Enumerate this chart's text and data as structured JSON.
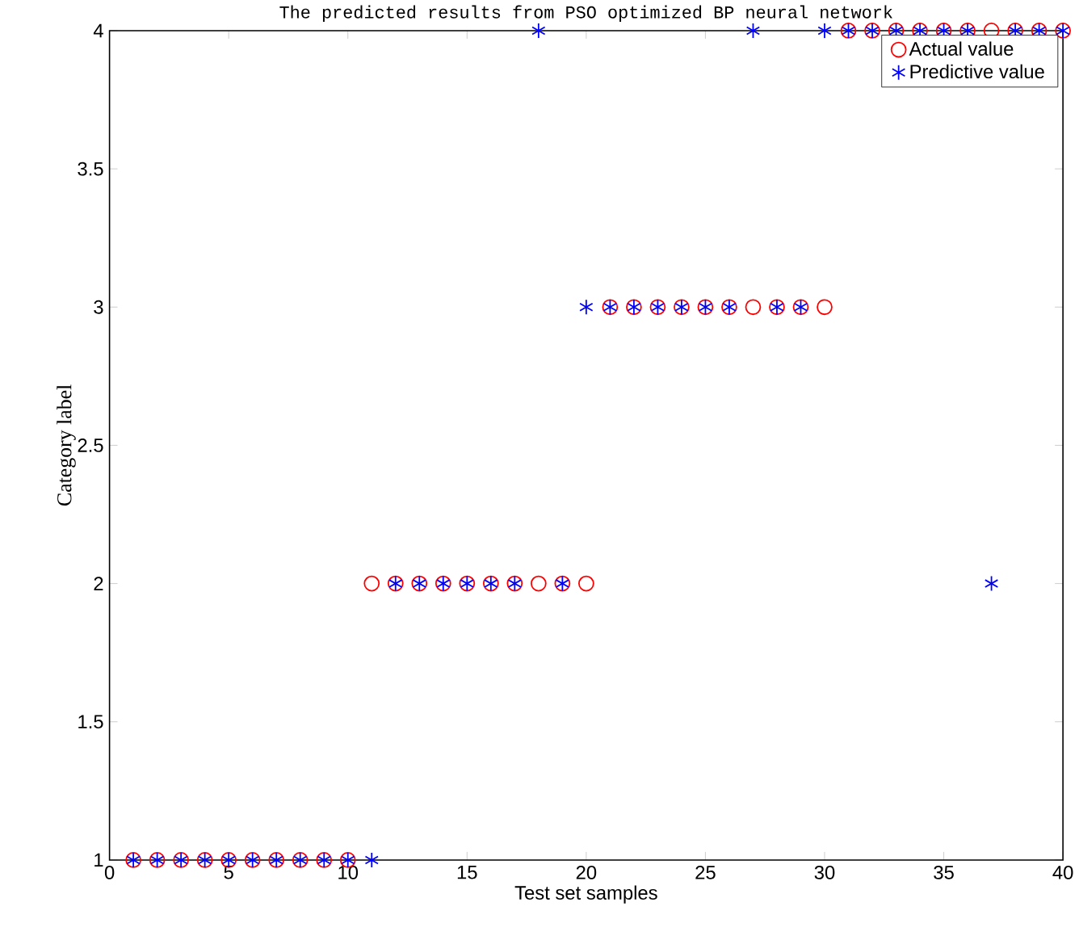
{
  "chart_data": {
    "type": "scatter",
    "title": "The predicted results from PSO optimized BP neural network",
    "xlabel": "Test set samples",
    "ylabel": "Category label",
    "x": [
      1,
      2,
      3,
      4,
      5,
      6,
      7,
      8,
      9,
      10,
      11,
      12,
      13,
      14,
      15,
      16,
      17,
      18,
      19,
      20,
      21,
      22,
      23,
      24,
      25,
      26,
      27,
      28,
      29,
      30,
      31,
      32,
      33,
      34,
      35,
      36,
      37,
      38,
      39,
      40
    ],
    "series": [
      {
        "name": "Actual value",
        "color": "#ff0000",
        "marker": "circle",
        "values": [
          1,
          1,
          1,
          1,
          1,
          1,
          1,
          1,
          1,
          1,
          2,
          2,
          2,
          2,
          2,
          2,
          2,
          2,
          2,
          2,
          3,
          3,
          3,
          3,
          3,
          3,
          3,
          3,
          3,
          3,
          4,
          4,
          4,
          4,
          4,
          4,
          4,
          4,
          4,
          4
        ]
      },
      {
        "name": "Predictive value",
        "color": "#0000ff",
        "marker": "cross",
        "values": [
          1,
          1,
          1,
          1,
          1,
          1,
          1,
          1,
          1,
          1,
          1,
          2,
          2,
          2,
          2,
          2,
          2,
          4,
          2,
          3,
          3,
          3,
          3,
          3,
          3,
          3,
          4,
          3,
          3,
          4,
          4,
          4,
          4,
          4,
          4,
          4,
          2,
          4,
          4,
          4
        ]
      }
    ],
    "xlim": [
      0,
      40
    ],
    "xticks": [
      0,
      5,
      10,
      15,
      20,
      25,
      30,
      35,
      40
    ],
    "ylim": [
      1,
      4
    ],
    "yticks": [
      1,
      1.5,
      2,
      2.5,
      3,
      3.5,
      4
    ],
    "legend": "top right",
    "grid": false
  }
}
